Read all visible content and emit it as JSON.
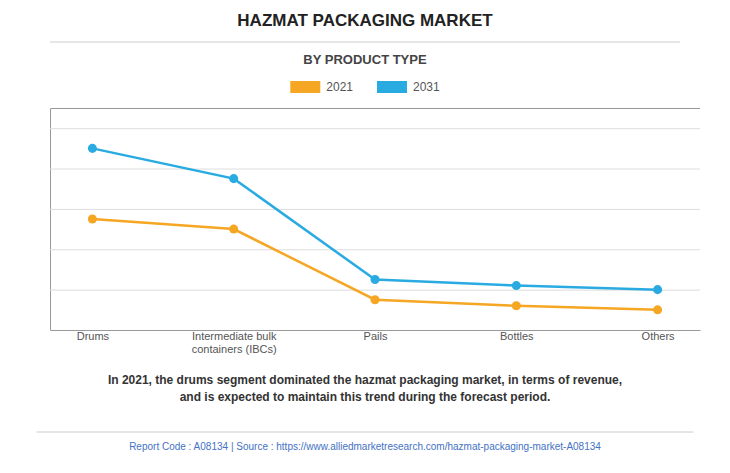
{
  "chart_data": {
    "type": "line",
    "title": "HAZMAT PACKAGING MARKET",
    "subtitle": "BY PRODUCT TYPE",
    "categories": [
      "Drums",
      "Intermediate bulk\ncontainers (IBCs)",
      "Pails",
      "Bottles",
      "Others"
    ],
    "series": [
      {
        "name": "2021",
        "color": "#F5A623",
        "values": [
          5.5,
          5.0,
          1.5,
          1.2,
          1.0
        ]
      },
      {
        "name": "2031",
        "color": "#29ABE2",
        "values": [
          9.0,
          7.5,
          2.5,
          2.2,
          2.0
        ]
      }
    ],
    "ylim": [
      0,
      11
    ],
    "yticks": [
      0,
      2,
      4,
      6,
      8,
      10
    ],
    "grid": true,
    "tick_labels": "x",
    "legend": "top",
    "marker": "circle",
    "annotations": [
      "In 2021, the drums segment dominated the hazmat packaging market, in terms of revenue,\nand is expected to maintain this trend during the forecast period.",
      "Report Code : A08134  |  Source : https://www.alliedmarketresearch.com/hazmat-packaging-market-A08134"
    ]
  }
}
